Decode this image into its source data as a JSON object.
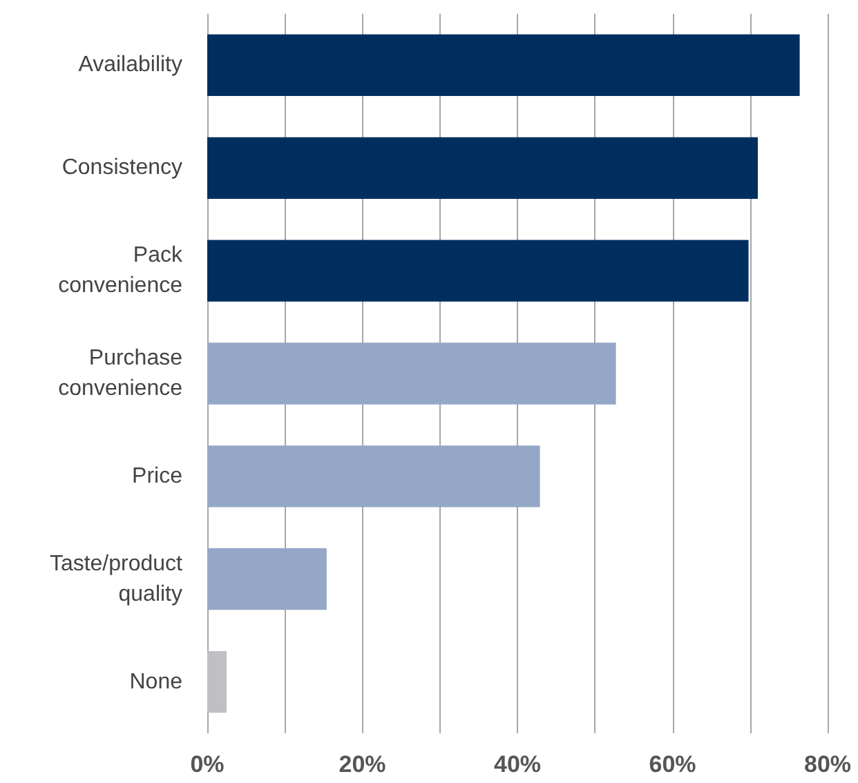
{
  "chart_data": {
    "type": "bar",
    "orientation": "horizontal",
    "categories": [
      "Availability",
      "Consistency",
      "Pack\nconvenience",
      "Purchase\nconvenience",
      "Price",
      "Taste/product\nquality",
      "None"
    ],
    "values": [
      76.4,
      71,
      69.8,
      52.7,
      42.9,
      15.4,
      2.5
    ],
    "colors": [
      "#002f5f",
      "#002f5f",
      "#002f5f",
      "#94a7c6",
      "#94a7c6",
      "#94a7c6",
      "#bfbfc4"
    ],
    "xlim": [
      0,
      80
    ],
    "xticks": [
      {
        "value": 0,
        "label": "0%"
      },
      {
        "value": 10,
        "label": null
      },
      {
        "value": 20,
        "label": "20%"
      },
      {
        "value": 30,
        "label": null
      },
      {
        "value": 40,
        "label": "40%"
      },
      {
        "value": 50,
        "label": null
      },
      {
        "value": 60,
        "label": "60%"
      },
      {
        "value": 70,
        "label": null
      },
      {
        "value": 80,
        "label": "80%"
      }
    ],
    "grid": "x"
  }
}
